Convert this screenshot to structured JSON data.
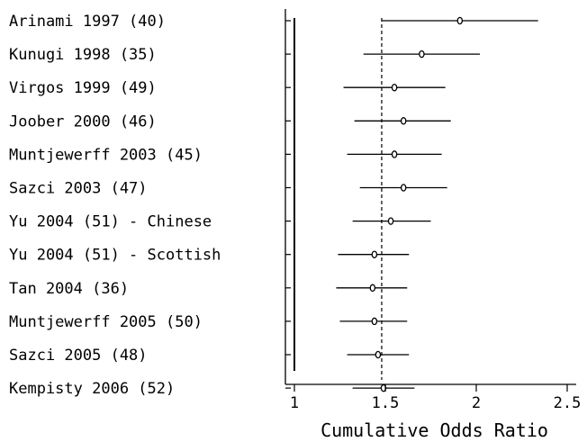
{
  "chart_data": {
    "type": "forest",
    "xlabel": "Cumulative Odds Ratio",
    "xlim": [
      1,
      2.5
    ],
    "xticks": [
      1,
      1.5,
      2,
      2.5
    ],
    "xtick_labels": [
      "1",
      "1.5",
      "2",
      "2.5"
    ],
    "reference_line": 1,
    "pooled_estimate_line": 1.48,
    "studies": [
      {
        "label": "Arinami 1997 (40)",
        "or": 1.91,
        "lower": 1.48,
        "upper": 2.34
      },
      {
        "label": "Kunugi 1998 (35)",
        "or": 1.7,
        "lower": 1.38,
        "upper": 2.02
      },
      {
        "label": "Virgos 1999 (49)",
        "or": 1.55,
        "lower": 1.27,
        "upper": 1.83
      },
      {
        "label": "Joober 2000 (46)",
        "or": 1.6,
        "lower": 1.33,
        "upper": 1.86
      },
      {
        "label": "Muntjewerff 2003 (45)",
        "or": 1.55,
        "lower": 1.29,
        "upper": 1.81
      },
      {
        "label": "Sazci 2003 (47)",
        "or": 1.6,
        "lower": 1.36,
        "upper": 1.84
      },
      {
        "label": "Yu 2004 (51) - Chinese",
        "or": 1.53,
        "lower": 1.32,
        "upper": 1.75
      },
      {
        "label": "Yu 2004 (51) - Scottish",
        "or": 1.44,
        "lower": 1.24,
        "upper": 1.63
      },
      {
        "label": "Tan 2004 (36)",
        "or": 1.43,
        "lower": 1.23,
        "upper": 1.62
      },
      {
        "label": "Muntjewerff 2005 (50)",
        "or": 1.44,
        "lower": 1.25,
        "upper": 1.62
      },
      {
        "label": "Sazci 2005 (48)",
        "or": 1.46,
        "lower": 1.29,
        "upper": 1.63
      },
      {
        "label": "Kempisty 2006 (52)",
        "or": 1.49,
        "lower": 1.32,
        "upper": 1.66
      }
    ]
  }
}
